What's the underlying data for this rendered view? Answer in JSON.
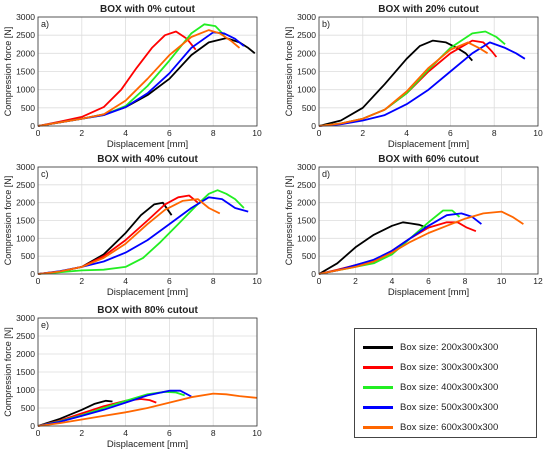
{
  "chart_data": [
    {
      "type": "line",
      "title": "BOX with 0% cutout",
      "panel_label": "a)",
      "xlabel": "Displacement [mm]",
      "ylabel": "Compression force [N]",
      "xlim": [
        0,
        10
      ],
      "ylim": [
        0,
        3000
      ],
      "xticks": [
        "0",
        "2",
        "4",
        "6",
        "8",
        "10"
      ],
      "yticks": [
        "0",
        "500",
        "1000",
        "1500",
        "2000",
        "2500",
        "3000"
      ],
      "grid": true,
      "series": [
        {
          "name": "Box size: 200x300x300",
          "x": [
            0,
            1,
            2,
            3,
            4,
            5,
            6,
            7,
            7.8,
            8.6,
            9.2,
            9.6,
            9.9
          ],
          "y": [
            0,
            100,
            200,
            320,
            520,
            850,
            1300,
            1950,
            2300,
            2420,
            2300,
            2150,
            2000
          ]
        },
        {
          "name": "Box size: 300x300x300",
          "x": [
            0,
            1,
            2,
            3,
            3.8,
            4.5,
            5.2,
            5.8,
            6.3,
            6.8,
            7.2
          ],
          "y": [
            0,
            120,
            250,
            520,
            1000,
            1600,
            2150,
            2500,
            2600,
            2400,
            2100
          ]
        },
        {
          "name": "Box size: 400x300x300",
          "x": [
            0,
            1,
            2,
            3,
            4,
            5,
            6,
            7,
            7.6,
            8.1,
            8.5
          ],
          "y": [
            0,
            100,
            200,
            300,
            550,
            1100,
            1800,
            2550,
            2800,
            2750,
            2500
          ]
        },
        {
          "name": "Box size: 500x300x300",
          "x": [
            0,
            1,
            2,
            3,
            4,
            5,
            6,
            7,
            8,
            8.5,
            9,
            9.4
          ],
          "y": [
            0,
            100,
            200,
            300,
            520,
            900,
            1450,
            2150,
            2580,
            2550,
            2400,
            2200
          ]
        },
        {
          "name": "Box size: 600x300x300",
          "x": [
            0,
            1,
            2,
            3,
            4,
            5,
            6,
            7,
            7.8,
            8.3,
            8.8,
            9.2
          ],
          "y": [
            0,
            100,
            200,
            320,
            700,
            1300,
            1950,
            2450,
            2640,
            2550,
            2350,
            2150
          ]
        }
      ]
    },
    {
      "type": "line",
      "title": "BOX with 20% cutout",
      "panel_label": "b)",
      "xlabel": "Displacement [mm]",
      "ylabel": "Compression force [N]",
      "xlim": [
        0,
        10
      ],
      "ylim": [
        0,
        3000
      ],
      "xticks": [
        "0",
        "2",
        "4",
        "6",
        "8",
        "10"
      ],
      "yticks": [
        "0",
        "500",
        "1000",
        "1500",
        "2000",
        "2500",
        "3000"
      ],
      "grid": true,
      "series": [
        {
          "name": "Box size: 200x300x300",
          "x": [
            0,
            1,
            2,
            3,
            4,
            4.6,
            5.2,
            5.8,
            6.3,
            6.7,
            7.0
          ],
          "y": [
            0,
            150,
            500,
            1150,
            1850,
            2200,
            2350,
            2300,
            2150,
            2000,
            1800
          ]
        },
        {
          "name": "Box size: 300x300x300",
          "x": [
            0,
            1,
            2,
            3,
            4,
            5,
            6,
            7,
            7.5,
            7.9,
            8.1
          ],
          "y": [
            0,
            70,
            200,
            450,
            900,
            1500,
            2000,
            2350,
            2300,
            2050,
            1900
          ]
        },
        {
          "name": "Box size: 400x300x300",
          "x": [
            0,
            1,
            2,
            3,
            4,
            5,
            6,
            7,
            7.6,
            8.1,
            8.5
          ],
          "y": [
            0,
            70,
            200,
            450,
            900,
            1550,
            2150,
            2550,
            2600,
            2450,
            2250
          ]
        },
        {
          "name": "Box size: 500x300x300",
          "x": [
            0,
            1,
            2,
            3,
            4,
            5,
            6,
            7,
            7.8,
            8.5,
            9.0,
            9.4
          ],
          "y": [
            0,
            50,
            150,
            300,
            600,
            1000,
            1500,
            2000,
            2300,
            2150,
            2000,
            1850
          ]
        },
        {
          "name": "Box size: 600x300x300",
          "x": [
            0,
            1,
            2,
            3,
            4,
            5,
            6,
            6.8,
            7.3,
            7.7
          ],
          "y": [
            0,
            70,
            200,
            450,
            950,
            1600,
            2100,
            2300,
            2150,
            2000
          ]
        }
      ]
    },
    {
      "type": "line",
      "title": "BOX with 40% cutout",
      "panel_label": "c)",
      "xlabel": "Displacement [mm]",
      "ylabel": "Compression force [N]",
      "xlim": [
        0,
        10
      ],
      "ylim": [
        0,
        3000
      ],
      "xticks": [
        "0",
        "2",
        "4",
        "6",
        "8",
        "10"
      ],
      "yticks": [
        "0",
        "500",
        "1000",
        "1500",
        "2000",
        "2500",
        "3000"
      ],
      "grid": true,
      "series": [
        {
          "name": "Box size: 200x300x300",
          "x": [
            0,
            1,
            2,
            3,
            4,
            4.7,
            5.3,
            5.7,
            6.1
          ],
          "y": [
            0,
            70,
            200,
            550,
            1150,
            1650,
            1950,
            2000,
            1650
          ]
        },
        {
          "name": "Box size: 300x300x300",
          "x": [
            0,
            1,
            2,
            3,
            4,
            5,
            5.8,
            6.4,
            6.9,
            7.3
          ],
          "y": [
            0,
            70,
            200,
            500,
            950,
            1500,
            1950,
            2150,
            2200,
            2000
          ]
        },
        {
          "name": "Box size: 400x300x300",
          "x": [
            0,
            1,
            2,
            3,
            4,
            4.8,
            5.6,
            6.4,
            7.2,
            7.8,
            8.2,
            8.6,
            9.0,
            9.4
          ],
          "y": [
            0,
            50,
            100,
            120,
            200,
            450,
            900,
            1400,
            1900,
            2250,
            2350,
            2250,
            2100,
            1850
          ]
        },
        {
          "name": "Box size: 500x300x300",
          "x": [
            0,
            1,
            2,
            3,
            4,
            5,
            6,
            7,
            7.8,
            8.4,
            9.0,
            9.6
          ],
          "y": [
            0,
            80,
            200,
            350,
            600,
            950,
            1400,
            1850,
            2150,
            2100,
            1850,
            1750
          ]
        },
        {
          "name": "Box size: 600x300x300",
          "x": [
            0,
            1,
            2,
            3,
            4,
            5,
            5.8,
            6.6,
            7.3,
            7.8,
            8.3
          ],
          "y": [
            0,
            70,
            200,
            450,
            850,
            1400,
            1800,
            2050,
            2100,
            1850,
            1700
          ]
        }
      ]
    },
    {
      "type": "line",
      "title": "BOX with 60% cutout",
      "panel_label": "d)",
      "xlabel": "Displacement [mm]",
      "ylabel": "Compression force [N]",
      "xlim": [
        0,
        12
      ],
      "ylim": [
        0,
        3000
      ],
      "xticks": [
        "0",
        "2",
        "4",
        "6",
        "8",
        "10",
        "12"
      ],
      "yticks": [
        "0",
        "500",
        "1000",
        "1500",
        "2000",
        "2500",
        "3000"
      ],
      "grid": true,
      "series": [
        {
          "name": "Box size: 200x300x300",
          "x": [
            0,
            1,
            2,
            3,
            4,
            4.6,
            5.0,
            5.5,
            5.9
          ],
          "y": [
            0,
            300,
            750,
            1100,
            1350,
            1450,
            1420,
            1380,
            1300
          ]
        },
        {
          "name": "Box size: 300x300x300",
          "x": [
            0,
            1,
            2,
            3,
            4,
            5,
            6,
            7,
            7.6,
            8.1,
            8.6
          ],
          "y": [
            0,
            120,
            250,
            380,
            650,
            1000,
            1300,
            1450,
            1450,
            1300,
            1200
          ]
        },
        {
          "name": "Box size: 400x300x300",
          "x": [
            0,
            1,
            2,
            3,
            4,
            5,
            6,
            6.8,
            7.3,
            7.7
          ],
          "y": [
            0,
            100,
            200,
            300,
            550,
            1000,
            1450,
            1780,
            1780,
            1600
          ]
        },
        {
          "name": "Box size: 500x300x300",
          "x": [
            0,
            1,
            2,
            3,
            4,
            5,
            6,
            7,
            7.8,
            8.4,
            8.9
          ],
          "y": [
            0,
            100,
            250,
            400,
            650,
            1000,
            1350,
            1650,
            1700,
            1600,
            1400
          ]
        },
        {
          "name": "Box size: 600x300x300",
          "x": [
            0,
            1,
            2,
            3,
            4,
            5,
            6,
            7,
            8,
            9,
            10,
            10.6,
            11.2
          ],
          "y": [
            0,
            100,
            200,
            350,
            600,
            900,
            1150,
            1350,
            1550,
            1700,
            1750,
            1600,
            1400
          ]
        }
      ]
    },
    {
      "type": "line",
      "title": "BOX with 80% cutout",
      "panel_label": "e)",
      "xlabel": "Displacement [mm]",
      "ylabel": "Compression force [N]",
      "xlim": [
        0,
        10
      ],
      "ylim": [
        0,
        3000
      ],
      "xticks": [
        "0",
        "2",
        "4",
        "6",
        "8",
        "10"
      ],
      "yticks": [
        "0",
        "500",
        "1000",
        "1500",
        "2000",
        "2500",
        "3000"
      ],
      "grid": true,
      "series": [
        {
          "name": "Box size: 200x300x300",
          "x": [
            0,
            1,
            2,
            2.6,
            3.1,
            3.4
          ],
          "y": [
            0,
            200,
            450,
            620,
            700,
            680
          ]
        },
        {
          "name": "Box size: 300x300x300",
          "x": [
            0,
            1,
            2,
            3,
            4,
            4.7,
            5.1,
            5.4
          ],
          "y": [
            0,
            150,
            350,
            550,
            700,
            750,
            720,
            650
          ]
        },
        {
          "name": "Box size: 400x300x300",
          "x": [
            0,
            1,
            2,
            3,
            4,
            5,
            5.8,
            6.3,
            6.7
          ],
          "y": [
            0,
            130,
            300,
            500,
            700,
            880,
            950,
            930,
            850
          ]
        },
        {
          "name": "Box size: 500x300x300",
          "x": [
            0,
            1,
            2,
            3,
            4,
            5,
            6,
            6.5,
            7.0
          ],
          "y": [
            0,
            120,
            280,
            450,
            650,
            850,
            980,
            980,
            820
          ]
        },
        {
          "name": "Box size: 600x300x300",
          "x": [
            0,
            1,
            2,
            3,
            4,
            5,
            6,
            7,
            8,
            8.6,
            9.2,
            10
          ],
          "y": [
            0,
            80,
            180,
            280,
            380,
            500,
            650,
            800,
            900,
            880,
            830,
            780
          ]
        }
      ]
    }
  ],
  "legend": {
    "entries": [
      {
        "label": "Box size: 200x300x300",
        "color": "#000000"
      },
      {
        "label": "Box size: 300x300x300",
        "color": "#ff0000"
      },
      {
        "label": "Box size: 400x300x300",
        "color": "#22ee22"
      },
      {
        "label": "Box size: 500x300x300",
        "color": "#0000ff"
      },
      {
        "label": "Box size: 600x300x300",
        "color": "#ff6600"
      }
    ]
  }
}
